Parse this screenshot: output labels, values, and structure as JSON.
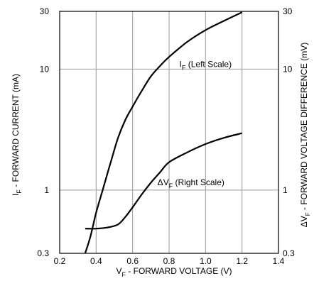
{
  "chart_data": {
    "type": "line",
    "title": "",
    "xlabel": {
      "sym": "V",
      "sub": "F",
      "text": " - FORWARD VOLTAGE (V)"
    },
    "ylabel_left": {
      "sym": "I",
      "sub": "F",
      "text": " - FORWARD CURRENT (mA)"
    },
    "ylabel_right": {
      "sym": "ΔV",
      "sub": "F",
      "text": " - FORWARD VOLTAGE DIFFERENCE (mV)"
    },
    "x_ticks": [
      "0.2",
      "0.4",
      "0.6",
      "0.8",
      "1.0",
      "1.2",
      "1.4"
    ],
    "y_ticks": [
      "0.3",
      "1",
      "10",
      "30"
    ],
    "xlim": [
      0.2,
      1.4
    ],
    "ylim": [
      0.3,
      30
    ],
    "yscale": "log",
    "grid": true,
    "series": [
      {
        "name": "I_F (Left Scale)",
        "label": {
          "sym": "I",
          "sub": "F",
          "text": " (Left Scale)"
        },
        "axis": "left",
        "x": [
          0.34,
          0.37,
          0.4,
          0.44,
          0.48,
          0.52,
          0.56,
          0.6,
          0.65,
          0.7,
          0.75,
          0.8,
          0.9,
          1.0,
          1.1,
          1.2
        ],
        "y": [
          0.3,
          0.42,
          0.65,
          1.05,
          1.7,
          2.7,
          3.8,
          4.9,
          6.6,
          8.7,
          10.6,
          12.6,
          16.8,
          21,
          25,
          29.5
        ]
      },
      {
        "name": "ΔV_F (Right Scale)",
        "label": {
          "sym": "ΔV",
          "sub": "F",
          "text": " (Right Scale)"
        },
        "axis": "right",
        "x": [
          0.34,
          0.4,
          0.46,
          0.52,
          0.56,
          0.6,
          0.65,
          0.7,
          0.75,
          0.8,
          0.9,
          1.0,
          1.1,
          1.2
        ],
        "y": [
          0.48,
          0.48,
          0.49,
          0.52,
          0.6,
          0.72,
          0.92,
          1.15,
          1.4,
          1.7,
          2.05,
          2.4,
          2.7,
          2.95
        ]
      }
    ]
  }
}
